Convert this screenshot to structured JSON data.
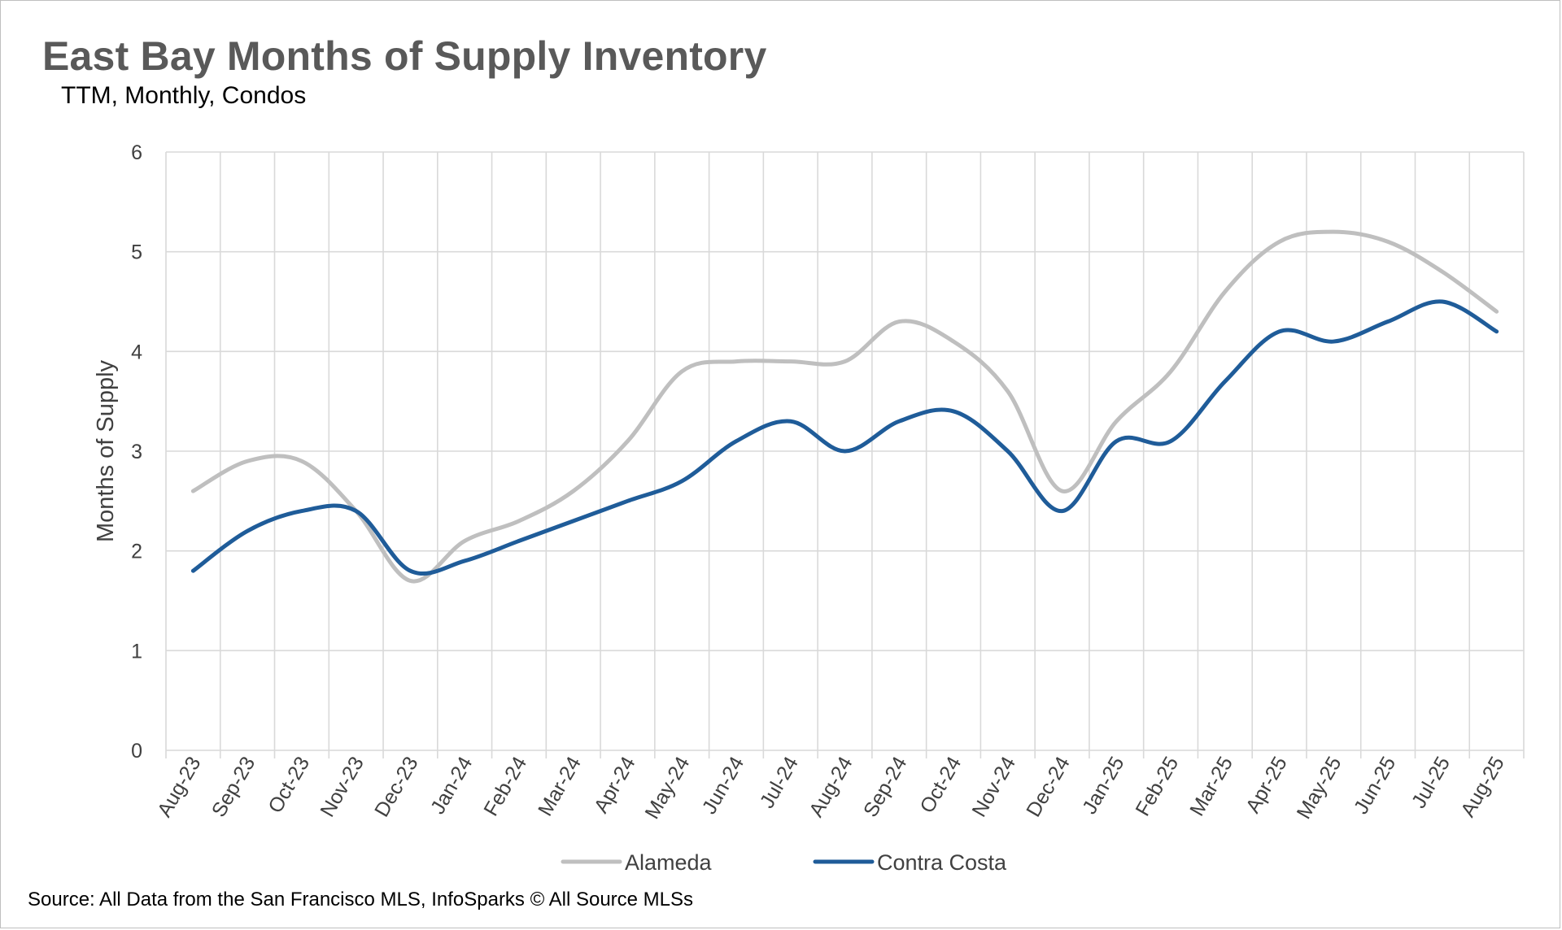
{
  "chart_data": {
    "type": "line",
    "title": "East Bay Months of Supply Inventory",
    "subtitle": "TTM, Monthly, Condos",
    "xlabel": "",
    "ylabel": "Months of Supply",
    "ylim": [
      0,
      6
    ],
    "yticks": [
      "0",
      "1",
      "2",
      "3",
      "4",
      "5",
      "6"
    ],
    "grid": true,
    "smooth": true,
    "legend_position": "bottom",
    "categories": [
      "Aug-23",
      "Sep-23",
      "Oct-23",
      "Nov-23",
      "Dec-23",
      "Jan-24",
      "Feb-24",
      "Mar-24",
      "Apr-24",
      "May-24",
      "Jun-24",
      "Jul-24",
      "Aug-24",
      "Sep-24",
      "Oct-24",
      "Nov-24",
      "Dec-24",
      "Jan-25",
      "Feb-25",
      "Mar-25",
      "Apr-25",
      "May-25",
      "Jun-25",
      "Jul-25",
      "Aug-25"
    ],
    "series": [
      {
        "name": "Alameda",
        "color": "#bfbfbf",
        "values": [
          2.6,
          2.9,
          2.9,
          2.4,
          1.7,
          2.1,
          2.3,
          2.6,
          3.1,
          3.8,
          3.9,
          3.9,
          3.9,
          4.3,
          4.1,
          3.6,
          2.6,
          3.3,
          3.8,
          4.6,
          5.1,
          5.2,
          5.1,
          4.8,
          4.4
        ]
      },
      {
        "name": "Contra Costa",
        "color": "#1f5c99",
        "values": [
          1.8,
          2.2,
          2.4,
          2.4,
          1.8,
          1.9,
          2.1,
          2.3,
          2.5,
          2.7,
          3.1,
          3.3,
          3.0,
          3.3,
          3.4,
          3.0,
          2.4,
          3.1,
          3.1,
          3.7,
          4.2,
          4.1,
          4.3,
          4.5,
          4.2
        ]
      }
    ]
  },
  "footer": {
    "source": "Source: All Data from the San Francisco MLS, InfoSparks © All Source MLSs"
  }
}
